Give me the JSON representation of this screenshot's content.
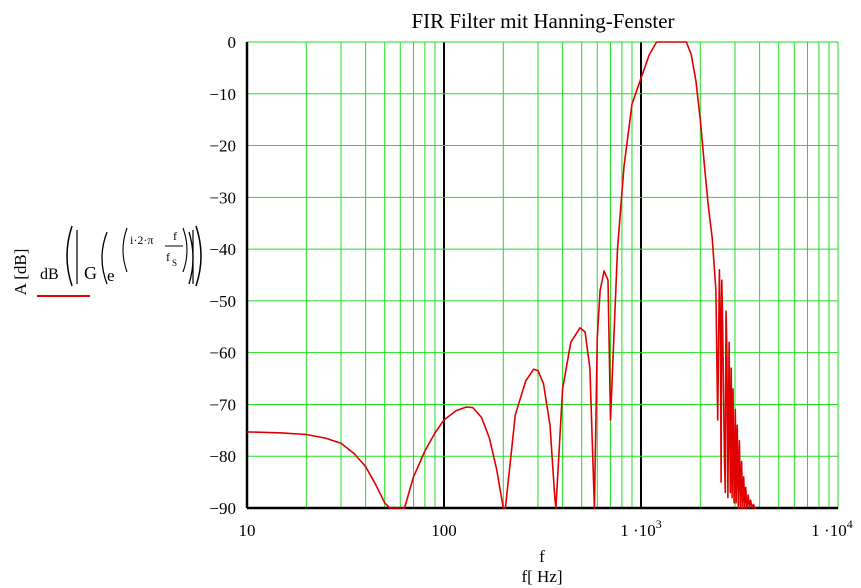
{
  "chart_data": {
    "type": "line",
    "title": "FIR Filter mit Hanning-Fenster",
    "xscale": "log",
    "xlim": [
      10,
      10000
    ],
    "ylim": [
      -90,
      0
    ],
    "grid": true,
    "xticks": [
      {
        "value": 10,
        "label": "10"
      },
      {
        "value": 100,
        "label": "100"
      },
      {
        "value": 1000,
        "label": "1 ·10",
        "exp": "3"
      },
      {
        "value": 10000,
        "label": "1 ·10",
        "exp": "4"
      }
    ],
    "yticks": [
      {
        "value": 0,
        "label": "0"
      },
      {
        "value": -10,
        "label": "−10"
      },
      {
        "value": -20,
        "label": "−20"
      },
      {
        "value": -30,
        "label": "−30"
      },
      {
        "value": -40,
        "label": "−40"
      },
      {
        "value": -50,
        "label": "−50"
      },
      {
        "value": -60,
        "label": "−60"
      },
      {
        "value": -70,
        "label": "−70"
      },
      {
        "value": -80,
        "label": "−80"
      },
      {
        "value": -90,
        "label": "−90"
      }
    ],
    "xlabel_lines": [
      "f",
      "f[ Hz]"
    ],
    "ylabel": "A [dB]",
    "legend_expression": {
      "dB": "dB",
      "G": "G",
      "e": "e",
      "exponent": "i·2·π",
      "numerator": "f",
      "denominator": "f",
      "denominator_sub": "S"
    },
    "series": [
      {
        "color": "#e00000",
        "x": [
          10,
          15,
          20,
          25,
          30,
          35,
          40,
          45,
          50,
          53,
          63,
          70,
          80,
          90,
          100,
          115,
          130,
          140,
          155,
          170,
          185,
          200,
          205,
          230,
          260,
          285,
          300,
          320,
          345,
          365,
          370,
          400,
          440,
          490,
          520,
          550,
          580,
          600,
          620,
          650,
          680,
          700,
          700,
          760,
          820,
          900,
          1000,
          1100,
          1200,
          1300,
          1400,
          1500,
          1600,
          1700,
          1800,
          1900,
          2000,
          2100,
          2200,
          2300,
          2400,
          2450,
          2450,
          2500,
          2530,
          2550,
          2570,
          2600,
          2650,
          2680,
          2700,
          2730,
          2760,
          2800,
          2840,
          2870,
          2900,
          2930,
          2970,
          3010,
          3040,
          3080,
          3120,
          3160,
          3200,
          3240,
          3280,
          3320,
          3360,
          3400,
          3450,
          3500,
          3550,
          3600,
          3660,
          3720,
          3780,
          3850
        ],
        "y": [
          -75.3,
          -75.5,
          -75.8,
          -76.5,
          -77.5,
          -79.5,
          -82,
          -85.5,
          -89,
          -90,
          -90,
          -84,
          -79,
          -75.5,
          -73,
          -71.2,
          -70.5,
          -70.6,
          -72.5,
          -76.5,
          -82.5,
          -90,
          -90,
          -72,
          -65.5,
          -63.2,
          -63.5,
          -66,
          -74,
          -88,
          -90,
          -67,
          -58,
          -55.2,
          -56,
          -63,
          -90,
          -57,
          -48,
          -44.2,
          -46,
          -73,
          -73,
          -40,
          -24,
          -12,
          -7,
          -2.5,
          0,
          0,
          0,
          0,
          0,
          0,
          -2.5,
          -7.5,
          -15,
          -24,
          -32,
          -38,
          -48,
          -73,
          -73,
          -44,
          -55,
          -85,
          -46,
          -55,
          -80,
          -87,
          -52,
          -60,
          -88,
          -58,
          -87,
          -63,
          -88,
          -67,
          -89,
          -71,
          -89,
          -74,
          -90,
          -77,
          -90,
          -81,
          -90,
          -84,
          -90,
          -86,
          -90,
          -87.5,
          -90,
          -88.5,
          -90,
          -89.3,
          -90,
          -90
        ]
      }
    ]
  }
}
